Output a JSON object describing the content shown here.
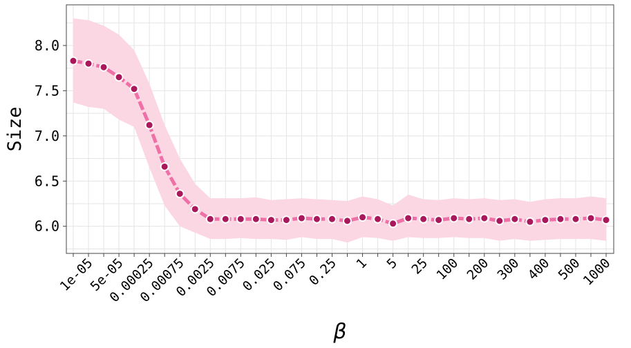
{
  "chart_data": {
    "type": "line",
    "xlabel": "β",
    "ylabel": "Size",
    "ylim": [
      5.7,
      8.45
    ],
    "y_ticks": [
      6.0,
      6.5,
      7.0,
      7.5,
      8.0
    ],
    "y_tick_labels": [
      "6.0",
      "6.5",
      "7.0",
      "7.5",
      "8.0"
    ],
    "grid": true,
    "x_tick_labels": [
      "1e-05",
      "5e-05",
      "0.00025",
      "0.00075",
      "0.0025",
      "0.0075",
      "0.025",
      "0.075",
      "0.25",
      "1",
      "5",
      "25",
      "100",
      "200",
      "300",
      "400",
      "500",
      "1000"
    ],
    "series": [
      {
        "values": [
          7.83,
          7.8,
          7.76,
          7.65,
          7.52,
          7.12,
          6.66,
          6.36,
          6.19,
          6.08,
          6.08,
          6.08,
          6.08,
          6.07,
          6.07,
          6.09,
          6.08,
          6.08,
          6.06,
          6.1,
          6.08,
          6.03,
          6.09,
          6.08,
          6.07,
          6.09,
          6.08,
          6.09,
          6.06,
          6.08,
          6.05,
          6.07,
          6.08,
          6.08,
          6.09,
          6.07
        ],
        "lower": [
          7.37,
          7.32,
          7.3,
          7.18,
          7.1,
          6.65,
          6.23,
          6.0,
          5.93,
          5.86,
          5.86,
          5.87,
          5.86,
          5.86,
          5.85,
          5.88,
          5.86,
          5.86,
          5.82,
          5.88,
          5.87,
          5.84,
          5.88,
          5.87,
          5.87,
          5.88,
          5.87,
          5.87,
          5.84,
          5.86,
          5.84,
          5.85,
          5.86,
          5.86,
          5.86,
          5.84
        ],
        "upper": [
          8.3,
          8.28,
          8.22,
          8.12,
          7.95,
          7.58,
          7.12,
          6.75,
          6.47,
          6.31,
          6.31,
          6.31,
          6.32,
          6.29,
          6.3,
          6.31,
          6.3,
          6.29,
          6.28,
          6.33,
          6.3,
          6.23,
          6.35,
          6.3,
          6.29,
          6.31,
          6.3,
          6.31,
          6.29,
          6.3,
          6.27,
          6.3,
          6.31,
          6.31,
          6.33,
          6.31
        ]
      }
    ],
    "colors": {
      "line": "#ef6fa7",
      "marker_fill": "#a8185a",
      "marker_edge": "#ffffff",
      "band": "#fbd6e3"
    }
  }
}
